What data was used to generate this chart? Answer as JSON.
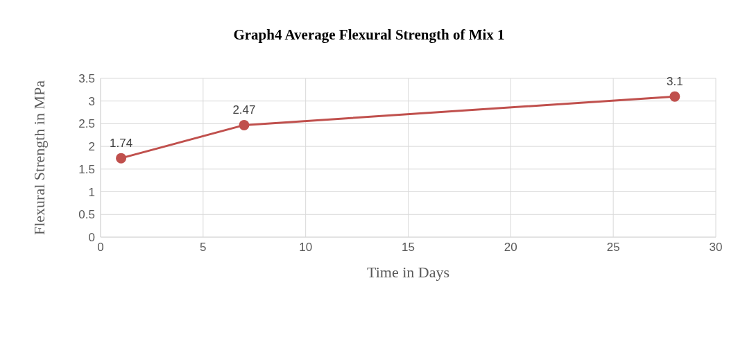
{
  "chart_data": {
    "type": "line",
    "title": "Graph4 Average Flexural Strength of Mix 1",
    "xlabel": "Time in Days",
    "ylabel": "Flexural Strength in MPa",
    "x": [
      1,
      7,
      28
    ],
    "series": [
      {
        "color": "#c0504d",
        "values": [
          1.74,
          2.47,
          3.1
        ]
      }
    ],
    "xlim": [
      0,
      30
    ],
    "xticks": [
      0,
      5,
      10,
      15,
      20,
      25,
      30
    ],
    "ylim": [
      0,
      3.5
    ],
    "yticks": [
      0,
      0.5,
      1,
      1.5,
      2,
      2.5,
      3,
      3.5
    ],
    "grid": true,
    "marker": "circle",
    "line_style": "solid",
    "data_labels": true,
    "legend": false
  }
}
